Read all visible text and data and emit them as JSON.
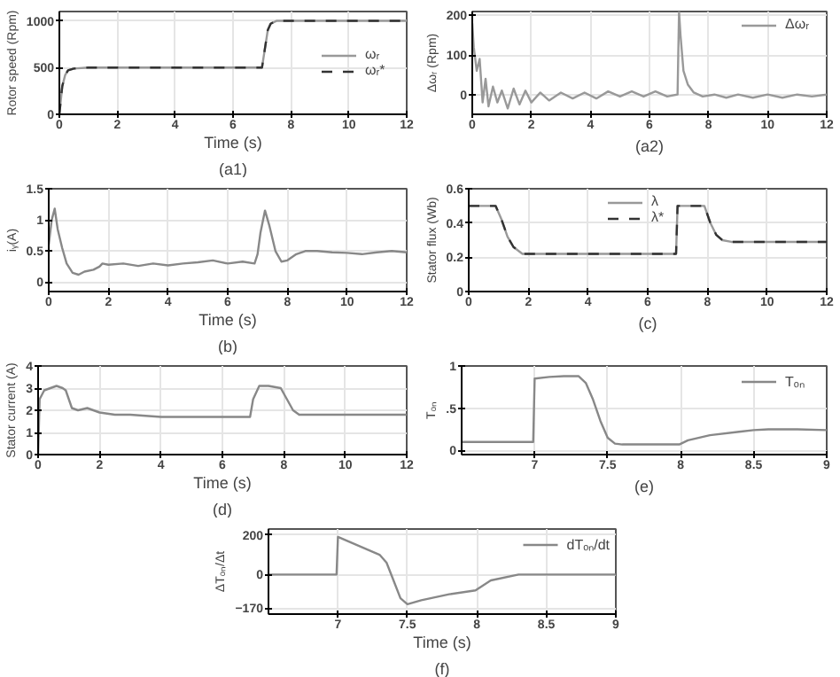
{
  "chart_data": [
    {
      "type": "line",
      "ylabel": "Rotor speed (Rpm)",
      "xlabel": "Time (s)",
      "annotations": [
        "(a1)"
      ],
      "xlim": [
        0,
        12
      ],
      "ylim": [
        0,
        1100
      ],
      "xticks": [
        0,
        2,
        4,
        6,
        8,
        10,
        12
      ],
      "yticks": [
        0,
        500,
        1000
      ],
      "grid": true,
      "legend": "right",
      "series": [
        {
          "name": "ωᵣ",
          "color": "#999999",
          "line_style": "solid",
          "x": [
            0,
            0.1,
            0.2,
            0.3,
            0.5,
            1,
            2,
            4,
            6,
            6.9,
            7,
            7.1,
            7.2,
            7.3,
            7.5,
            8,
            10,
            12
          ],
          "values": [
            0,
            300,
            420,
            470,
            490,
            500,
            500,
            500,
            500,
            500,
            500,
            700,
            900,
            970,
            1000,
            1000,
            1000,
            1000
          ]
        },
        {
          "name": "ωᵣ*",
          "color": "#333333",
          "line_style": "dashed",
          "x": [
            0,
            0.1,
            0.2,
            0.3,
            0.5,
            1,
            2,
            4,
            6,
            6.9,
            7,
            7.1,
            7.2,
            7.3,
            7.5,
            8,
            10,
            12
          ],
          "values": [
            0,
            300,
            420,
            470,
            490,
            500,
            500,
            500,
            500,
            500,
            500,
            700,
            900,
            970,
            1000,
            1000,
            1000,
            1000
          ]
        }
      ]
    },
    {
      "type": "line",
      "ylabel": "Δωᵣ (Rpm)",
      "annotations": [
        "(a2)"
      ],
      "xlim": [
        0,
        12
      ],
      "ylim": [
        -50,
        210
      ],
      "xticks": [
        0,
        2,
        4,
        6,
        8,
        10,
        12
      ],
      "yticks": [
        0,
        100,
        200
      ],
      "grid": true,
      "legend": "top right",
      "series": [
        {
          "name": "Δωᵣ",
          "color": "#999999",
          "line_style": "solid",
          "x": [
            0,
            0.05,
            0.15,
            0.25,
            0.35,
            0.45,
            0.55,
            0.7,
            0.85,
            1.0,
            1.2,
            1.4,
            1.6,
            1.8,
            2.0,
            2.3,
            2.6,
            3,
            3.4,
            3.8,
            4.2,
            4.6,
            5,
            5.4,
            5.8,
            6.2,
            6.6,
            6.95,
            7.0,
            7.05,
            7.15,
            7.3,
            7.5,
            7.8,
            8.2,
            8.6,
            9,
            9.5,
            10,
            10.5,
            11,
            11.5,
            12
          ],
          "values": [
            180,
            120,
            60,
            90,
            -20,
            40,
            -30,
            20,
            -20,
            10,
            -35,
            15,
            -25,
            10,
            -20,
            5,
            -15,
            5,
            -10,
            5,
            -10,
            8,
            -5,
            8,
            -5,
            8,
            -5,
            0,
            210,
            150,
            60,
            25,
            5,
            -5,
            0,
            -8,
            0,
            -8,
            0,
            -8,
            0,
            -5,
            0
          ]
        }
      ]
    },
    {
      "type": "line",
      "ylabel": "iᵧ(A)",
      "xlabel": "Time (s)",
      "annotations": [
        "(b)"
      ],
      "xlim": [
        0,
        12
      ],
      "ylim": [
        -0.15,
        1.5
      ],
      "xticks": [
        0,
        2,
        4,
        6,
        8,
        10,
        12
      ],
      "yticks": [
        0,
        0.5,
        1,
        1.5
      ],
      "grid": true,
      "series": [
        {
          "color": "#888888",
          "line_style": "solid",
          "x": [
            0,
            0.1,
            0.2,
            0.3,
            0.45,
            0.6,
            0.8,
            1.0,
            1.2,
            1.5,
            1.7,
            1.8,
            2,
            2.5,
            3,
            3.5,
            4,
            4.5,
            5,
            5.5,
            6,
            6.5,
            6.9,
            7.0,
            7.1,
            7.25,
            7.4,
            7.6,
            7.8,
            8,
            8.3,
            8.6,
            9,
            9.5,
            10,
            10.5,
            11,
            11.5,
            12
          ],
          "values": [
            0.6,
            1.0,
            1.18,
            0.85,
            0.55,
            0.3,
            0.15,
            0.12,
            0.17,
            0.2,
            0.25,
            0.3,
            0.28,
            0.3,
            0.26,
            0.3,
            0.27,
            0.3,
            0.32,
            0.35,
            0.3,
            0.33,
            0.3,
            0.45,
            0.8,
            1.15,
            0.9,
            0.5,
            0.33,
            0.35,
            0.45,
            0.5,
            0.5,
            0.48,
            0.47,
            0.45,
            0.48,
            0.5,
            0.48
          ]
        }
      ]
    },
    {
      "type": "line",
      "ylabel": "Stator flux (Wb)",
      "annotations": [
        "(c)"
      ],
      "xlim": [
        0,
        12
      ],
      "ylim": [
        0,
        0.6
      ],
      "xticks": [
        0,
        2,
        4,
        6,
        8,
        10,
        12
      ],
      "yticks": [
        0,
        0.2,
        0.4,
        0.6
      ],
      "grid": true,
      "legend": "top",
      "series": [
        {
          "name": "λ",
          "color": "#999999",
          "line_style": "solid",
          "x": [
            0,
            0.9,
            1.1,
            1.3,
            1.5,
            1.8,
            2,
            6.95,
            7.0,
            7.9,
            8.1,
            8.3,
            8.5,
            8.8,
            9,
            12
          ],
          "values": [
            0.5,
            0.5,
            0.42,
            0.32,
            0.26,
            0.22,
            0.22,
            0.22,
            0.5,
            0.5,
            0.4,
            0.33,
            0.3,
            0.29,
            0.29,
            0.29
          ]
        },
        {
          "name": "λ*",
          "color": "#333333",
          "line_style": "dashed",
          "x": [
            0,
            0.9,
            1.1,
            1.3,
            1.5,
            1.8,
            2,
            6.95,
            7.0,
            7.9,
            8.1,
            8.3,
            8.5,
            8.8,
            9,
            12
          ],
          "values": [
            0.5,
            0.5,
            0.42,
            0.32,
            0.26,
            0.22,
            0.22,
            0.22,
            0.5,
            0.5,
            0.4,
            0.33,
            0.3,
            0.29,
            0.29,
            0.29
          ]
        }
      ]
    },
    {
      "type": "line",
      "ylabel": "Stator current (A)",
      "xlabel": "Time (s)",
      "annotations": [
        "(d)"
      ],
      "xlim": [
        0,
        12
      ],
      "ylim": [
        0,
        4
      ],
      "xticks": [
        0,
        2,
        4,
        6,
        8,
        10,
        12
      ],
      "yticks": [
        0,
        1,
        2,
        3,
        4
      ],
      "grid": true,
      "series": [
        {
          "color": "#888888",
          "line_style": "solid",
          "x": [
            0,
            0.05,
            0.2,
            0.4,
            0.6,
            0.8,
            0.9,
            1.1,
            1.3,
            1.6,
            1.8,
            2,
            2.5,
            3,
            4,
            5,
            6,
            6.9,
            7.0,
            7.2,
            7.5,
            7.9,
            8.1,
            8.3,
            8.5,
            9,
            10,
            11,
            12
          ],
          "values": [
            0,
            2.5,
            2.9,
            3.0,
            3.1,
            3.0,
            2.9,
            2.1,
            2.0,
            2.1,
            2.0,
            1.9,
            1.8,
            1.8,
            1.7,
            1.7,
            1.7,
            1.7,
            2.5,
            3.1,
            3.1,
            3.0,
            2.5,
            2.0,
            1.8,
            1.8,
            1.8,
            1.8,
            1.8
          ]
        }
      ]
    },
    {
      "type": "line",
      "ylabel": "Tₒₙ",
      "annotations": [
        "(e)"
      ],
      "xlim": [
        6.5,
        9
      ],
      "ylim": [
        -0.05,
        1
      ],
      "xticks": [
        7,
        7.5,
        8,
        8.5,
        9
      ],
      "yticks": [
        0,
        {
          "value": 0.5,
          "label": ".5"
        },
        1
      ],
      "grid": true,
      "legend": "top right",
      "series": [
        {
          "name": "Tₒₙ",
          "color": "#888888",
          "line_style": "solid",
          "x": [
            6.5,
            6.7,
            6.9,
            6.99,
            7.0,
            7.1,
            7.2,
            7.3,
            7.35,
            7.4,
            7.45,
            7.5,
            7.55,
            7.6,
            7.8,
            7.99,
            8.05,
            8.2,
            8.4,
            8.5,
            8.6,
            8.8,
            9
          ],
          "values": [
            0.1,
            0.1,
            0.1,
            0.1,
            0.85,
            0.87,
            0.88,
            0.88,
            0.8,
            0.6,
            0.35,
            0.15,
            0.08,
            0.07,
            0.07,
            0.07,
            0.12,
            0.18,
            0.22,
            0.24,
            0.25,
            0.25,
            0.24
          ]
        }
      ]
    },
    {
      "type": "line",
      "ylabel": "ΔTₒₙ/Δt",
      "xlabel": "Time (s)",
      "annotations": [
        "(f)"
      ],
      "xlim": [
        6.5,
        9
      ],
      "ylim": [
        -200,
        230
      ],
      "xticks": [
        7,
        7.5,
        8,
        8.5,
        9
      ],
      "yticks": [
        -170,
        0,
        200
      ],
      "grid": true,
      "legend": "top right",
      "series": [
        {
          "name": "dTₒₙ/dt",
          "color": "#888888",
          "line_style": "solid",
          "x": [
            6.5,
            6.8,
            6.99,
            7.0,
            7.1,
            7.2,
            7.3,
            7.35,
            7.4,
            7.45,
            7.5,
            7.6,
            7.8,
            7.99,
            8.1,
            8.3,
            8.5,
            8.7,
            9
          ],
          "values": [
            0,
            0,
            0,
            190,
            160,
            130,
            100,
            60,
            -30,
            -120,
            -150,
            -130,
            -100,
            -80,
            -30,
            0,
            0,
            0,
            0
          ]
        }
      ]
    }
  ]
}
